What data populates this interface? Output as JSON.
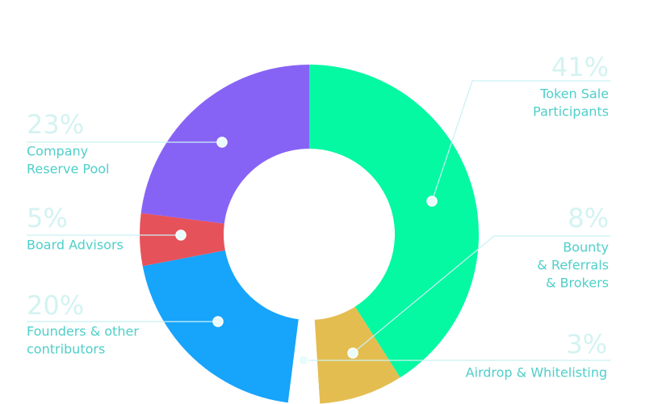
{
  "chart_data": {
    "type": "donut",
    "labels": [
      [
        "Token Sale",
        "Participants"
      ],
      [
        "Bounty",
        "& Referrals",
        "& Brokers"
      ],
      [
        "Airdrop & Whitelisting"
      ],
      [
        "Founders & other",
        "contributors"
      ],
      [
        "Board Advisors"
      ],
      [
        "Company",
        "Reserve Pool"
      ]
    ],
    "values": [
      41,
      8,
      3,
      20,
      5,
      23
    ],
    "value_labels": [
      "41%",
      "8%",
      "3%",
      "20%",
      "5%",
      "23%"
    ],
    "colors": [
      "#05f9a2",
      "#e4bd51",
      "#ffffff",
      "#17a4fb",
      "#e6525a",
      "#8763f5"
    ]
  }
}
